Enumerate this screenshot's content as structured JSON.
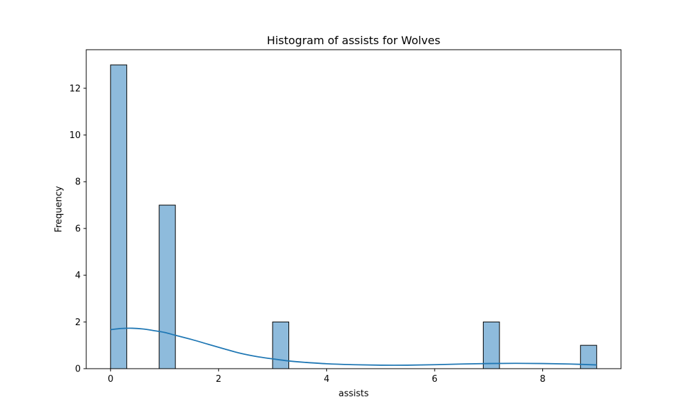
{
  "chart_data": {
    "type": "bar",
    "title": "Histogram of assists for Wolves",
    "xlabel": "assists",
    "ylabel": "Frequency",
    "xlim": [
      -0.45,
      9.45
    ],
    "ylim": [
      0,
      13.65
    ],
    "bin_width": 0.3,
    "bins": [
      {
        "x_start": 0.0,
        "x_end": 0.3,
        "count": 13
      },
      {
        "x_start": 0.9,
        "x_end": 1.2,
        "count": 7
      },
      {
        "x_start": 3.0,
        "x_end": 3.3,
        "count": 2
      },
      {
        "x_start": 6.9,
        "x_end": 7.2,
        "count": 2
      },
      {
        "x_start": 8.7,
        "x_end": 9.0,
        "count": 1
      }
    ],
    "kde": {
      "x": [
        0.0,
        0.2,
        0.4,
        0.6,
        0.8,
        1.0,
        1.2,
        1.5,
        1.8,
        2.1,
        2.4,
        2.7,
        3.0,
        3.3,
        3.6,
        4.0,
        4.5,
        5.0,
        5.5,
        6.0,
        6.5,
        7.0,
        7.5,
        8.0,
        8.5,
        9.0
      ],
      "y": [
        1.67,
        1.72,
        1.73,
        1.7,
        1.63,
        1.55,
        1.43,
        1.25,
        1.05,
        0.85,
        0.66,
        0.52,
        0.42,
        0.33,
        0.27,
        0.21,
        0.17,
        0.15,
        0.15,
        0.17,
        0.2,
        0.22,
        0.23,
        0.22,
        0.2,
        0.16
      ]
    },
    "xticks": [
      0,
      2,
      4,
      6,
      8
    ],
    "yticks": [
      0,
      2,
      4,
      6,
      8,
      10,
      12
    ],
    "colors": {
      "bar_fill": "#8ebbdc",
      "bar_edge": "#000000",
      "kde_line": "#1f77b4"
    },
    "grid": false,
    "legend": "none"
  }
}
